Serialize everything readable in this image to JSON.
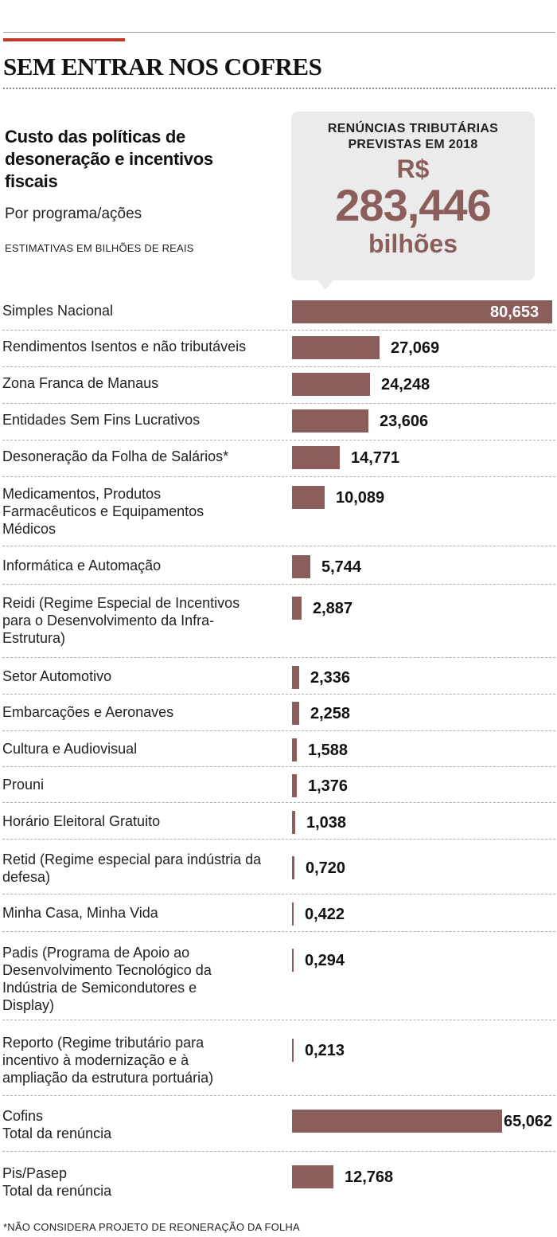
{
  "headline": "SEM ENTRAR NOS COFRES",
  "subtitle": "Custo das políticas de desoneração e incentivos fiscais",
  "subtitle2": "Por programa/ações",
  "units_note": "ESTIMATIVAS EM BILHÕES DE REAIS",
  "callout": {
    "heading": "RENÚNCIAS TRIBUTÁRIAS PREVISTAS EM 2018",
    "currency": "R$",
    "value": "283,446",
    "unit": "bilhões"
  },
  "footnote": "*NÃO CONSIDERA PROJETO DE REONERAÇÃO DA FOLHA",
  "colors": {
    "bar": "#8c5e5b",
    "accent_rule": "#c0392b",
    "callout_bg": "#ebebeb"
  },
  "chart_data": {
    "type": "bar",
    "orientation": "horizontal",
    "categories": [
      "Simples Nacional",
      "Rendimentos Isentos e não tributáveis",
      "Zona Franca de Manaus",
      "Entidades Sem Fins Lucrativos",
      "Desoneração da Folha de Salários*",
      "Medicamentos, Produtos Farmacêuticos e Equipamentos Médicos",
      "Informática e Automação",
      "Reidi (Regime Especial de Incentivos para o Desenvolvimento da Infra-Estrutura)",
      "Setor Automotivo",
      "Embarcações e Aeronaves",
      "Cultura e Audiovisual",
      "Prouni",
      "Horário Eleitoral Gratuito",
      "Retid (Regime especial para indústria da defesa)",
      "Minha Casa, Minha Vida",
      "Padis (Programa de Apoio ao Desenvolvimento Tecnológico da Indústria de Semicondutores e Display)",
      "Reporto (Regime tributário para incentivo à modernização e à ampliação da estrutura portuária)",
      "Cofins\nTotal da renúncia",
      "Pis/Pasep\nTotal da renúncia"
    ],
    "values": [
      80.653,
      27.069,
      24.248,
      23.606,
      14.771,
      10.089,
      5.744,
      2.887,
      2.336,
      2.258,
      1.588,
      1.376,
      1.038,
      0.72,
      0.422,
      0.294,
      0.213,
      65.062,
      12.768
    ],
    "value_labels": [
      "80,653",
      "27,069",
      "24,248",
      "23,606",
      "14,771",
      "10,089",
      "5,744",
      "2,887",
      "2,336",
      "2,258",
      "1,588",
      "1,376",
      "1,038",
      "0,720",
      "0,422",
      "0,294",
      "0,213",
      "65,062",
      "12,768"
    ],
    "xlim": [
      0,
      80.653
    ],
    "grid": false
  }
}
